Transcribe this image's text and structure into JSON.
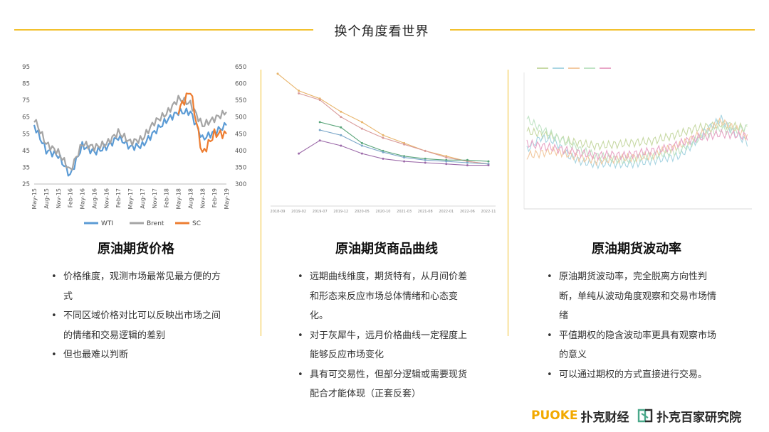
{
  "page": {
    "title": "换个角度看世界"
  },
  "columns": [
    {
      "title": "原油期货价格",
      "bullets": [
        "价格维度，观测市场最常见最方便的方式",
        "不同区域价格对比可以反映出市场之间的情绪和交易逻辑的差别",
        "但也最难以判断"
      ]
    },
    {
      "title": "原油期货商品曲线",
      "bullets": [
        "远期曲线维度，期货特有，从月间价差和形态来反应市场总体情绪和心态变化。",
        "对于灰犀牛，远月价格曲线一定程度上能够反应市场变化",
        "具有可交易性，但部分逻辑或需要现货配合才能体现（正套反套）"
      ]
    },
    {
      "title": "原油期货波动率",
      "bullets": [
        "原油期货波动率，完全脱离方向性判断，单纯从波动角度观察和交易市场情绪",
        "平值期权的隐含波动率更具有观察市场的意义",
        "可以通过期权的方式直接进行交易。"
      ]
    }
  ],
  "chart_data": [
    {
      "type": "line",
      "categories": [
        "May-15",
        "Aug-15",
        "Nov-15",
        "Feb-16",
        "May-16",
        "Aug-16",
        "Nov-16",
        "Feb-17",
        "May-17",
        "Aug-17",
        "Nov-17",
        "Feb-18",
        "May-18",
        "Aug-18",
        "Nov-18",
        "Feb-19",
        "May-19"
      ],
      "left_axis": {
        "ticks": [
          "95",
          "85",
          "75",
          "65",
          "55",
          "45",
          "35",
          "25"
        ],
        "ylim": [
          25,
          95
        ]
      },
      "right_axis": {
        "ticks": [
          "650",
          "600",
          "550",
          "500",
          "450",
          "400",
          "350",
          "300"
        ],
        "ylim": [
          300,
          650
        ]
      },
      "series": [
        {
          "name": "WTI",
          "color": "#5b9bd5",
          "axis": "left",
          "values": [
            60,
            45,
            42,
            30,
            48,
            44,
            47,
            53,
            47,
            48,
            56,
            63,
            68,
            68,
            52,
            56,
            60
          ]
        },
        {
          "name": "Brent",
          "color": "#a5a5a5",
          "axis": "left",
          "values": [
            64,
            49,
            44,
            33,
            49,
            47,
            49,
            56,
            50,
            52,
            62,
            67,
            76,
            73,
            60,
            64,
            68
          ]
        },
        {
          "name": "SC",
          "color": "#ed7d31",
          "axis": "right",
          "values": [
            null,
            null,
            null,
            null,
            null,
            null,
            null,
            null,
            null,
            null,
            null,
            null,
            520,
            580,
            390,
            450,
            450
          ]
        }
      ],
      "legend_placement": "bottom"
    },
    {
      "type": "line",
      "x_ticks": [
        "2018-09",
        "2019-02",
        "2019-07",
        "2019-12",
        "2020-05",
        "2020-10",
        "2021-03",
        "2021-08",
        "2022-01",
        "2022-06",
        "2022-11"
      ],
      "series": [
        {
          "color": "#e8b46a",
          "values": [
            [
              0,
              99
            ],
            [
              1,
              86
            ],
            [
              2,
              80
            ],
            [
              3,
              70
            ],
            [
              4,
              62
            ],
            [
              5,
              52
            ],
            [
              6,
              46
            ],
            [
              7,
              40
            ],
            [
              8,
              36
            ],
            [
              9,
              32
            ],
            [
              10,
              30
            ]
          ]
        },
        {
          "color": "#d89a9a",
          "values": [
            [
              1,
              84
            ],
            [
              2,
              79
            ],
            [
              3,
              66
            ],
            [
              4,
              57
            ],
            [
              5,
              50
            ],
            [
              6,
              45
            ],
            [
              7,
              40
            ],
            [
              8,
              35
            ],
            [
              9,
              32
            ],
            [
              10,
              30
            ]
          ]
        },
        {
          "color": "#5aa57a",
          "values": [
            [
              2,
              62
            ],
            [
              3,
              58
            ],
            [
              4,
              46
            ],
            [
              5,
              40
            ],
            [
              6,
              36
            ],
            [
              7,
              34
            ],
            [
              8,
              33
            ],
            [
              9,
              33
            ],
            [
              10,
              32
            ]
          ]
        },
        {
          "color": "#7ba7c9",
          "values": [
            [
              2,
              56
            ],
            [
              3,
              52
            ],
            [
              4,
              44
            ],
            [
              5,
              39
            ],
            [
              6,
              35
            ],
            [
              7,
              33
            ],
            [
              8,
              32
            ],
            [
              9,
              31
            ],
            [
              10,
              30
            ]
          ]
        },
        {
          "color": "#9c6aa9",
          "values": [
            [
              1,
              38
            ],
            [
              2,
              48
            ],
            [
              3,
              44
            ],
            [
              4,
              38
            ],
            [
              5,
              34
            ],
            [
              6,
              32
            ],
            [
              7,
              31
            ],
            [
              8,
              30
            ],
            [
              9,
              29
            ],
            [
              10,
              29
            ]
          ]
        }
      ]
    },
    {
      "type": "line",
      "series": [
        {
          "color": "#c7d9a4",
          "values": [
            60,
            58,
            55,
            52,
            50,
            48,
            49,
            50,
            51,
            52,
            55,
            58,
            62,
            64,
            66,
            64,
            62
          ]
        },
        {
          "color": "#a8d5e2",
          "values": [
            45,
            55,
            52,
            40,
            35,
            33,
            34,
            33,
            34,
            36,
            38,
            40,
            50,
            62,
            70,
            58,
            50
          ]
        },
        {
          "color": "#f2c9a0",
          "values": [
            40,
            42,
            44,
            41,
            38,
            36,
            37,
            38,
            39,
            40,
            45,
            48,
            55,
            60,
            68,
            62,
            55
          ]
        },
        {
          "color": "#bfe3c4",
          "values": [
            70,
            62,
            56,
            50,
            44,
            40,
            38,
            36,
            38,
            40,
            42,
            44,
            52,
            58,
            62,
            60,
            64
          ]
        },
        {
          "color": "#e8a5c6",
          "values": [
            50,
            48,
            46,
            44,
            42,
            40,
            41,
            40,
            42,
            44,
            46,
            50,
            54,
            56,
            58,
            57,
            56
          ]
        }
      ]
    }
  ],
  "branding": {
    "puoke_en": "PUOKE",
    "puoke_cn": "扑克财经",
    "institute_cn": "扑克百家研究院",
    "accent": "#f2a900",
    "teal": "#4aa88a"
  }
}
